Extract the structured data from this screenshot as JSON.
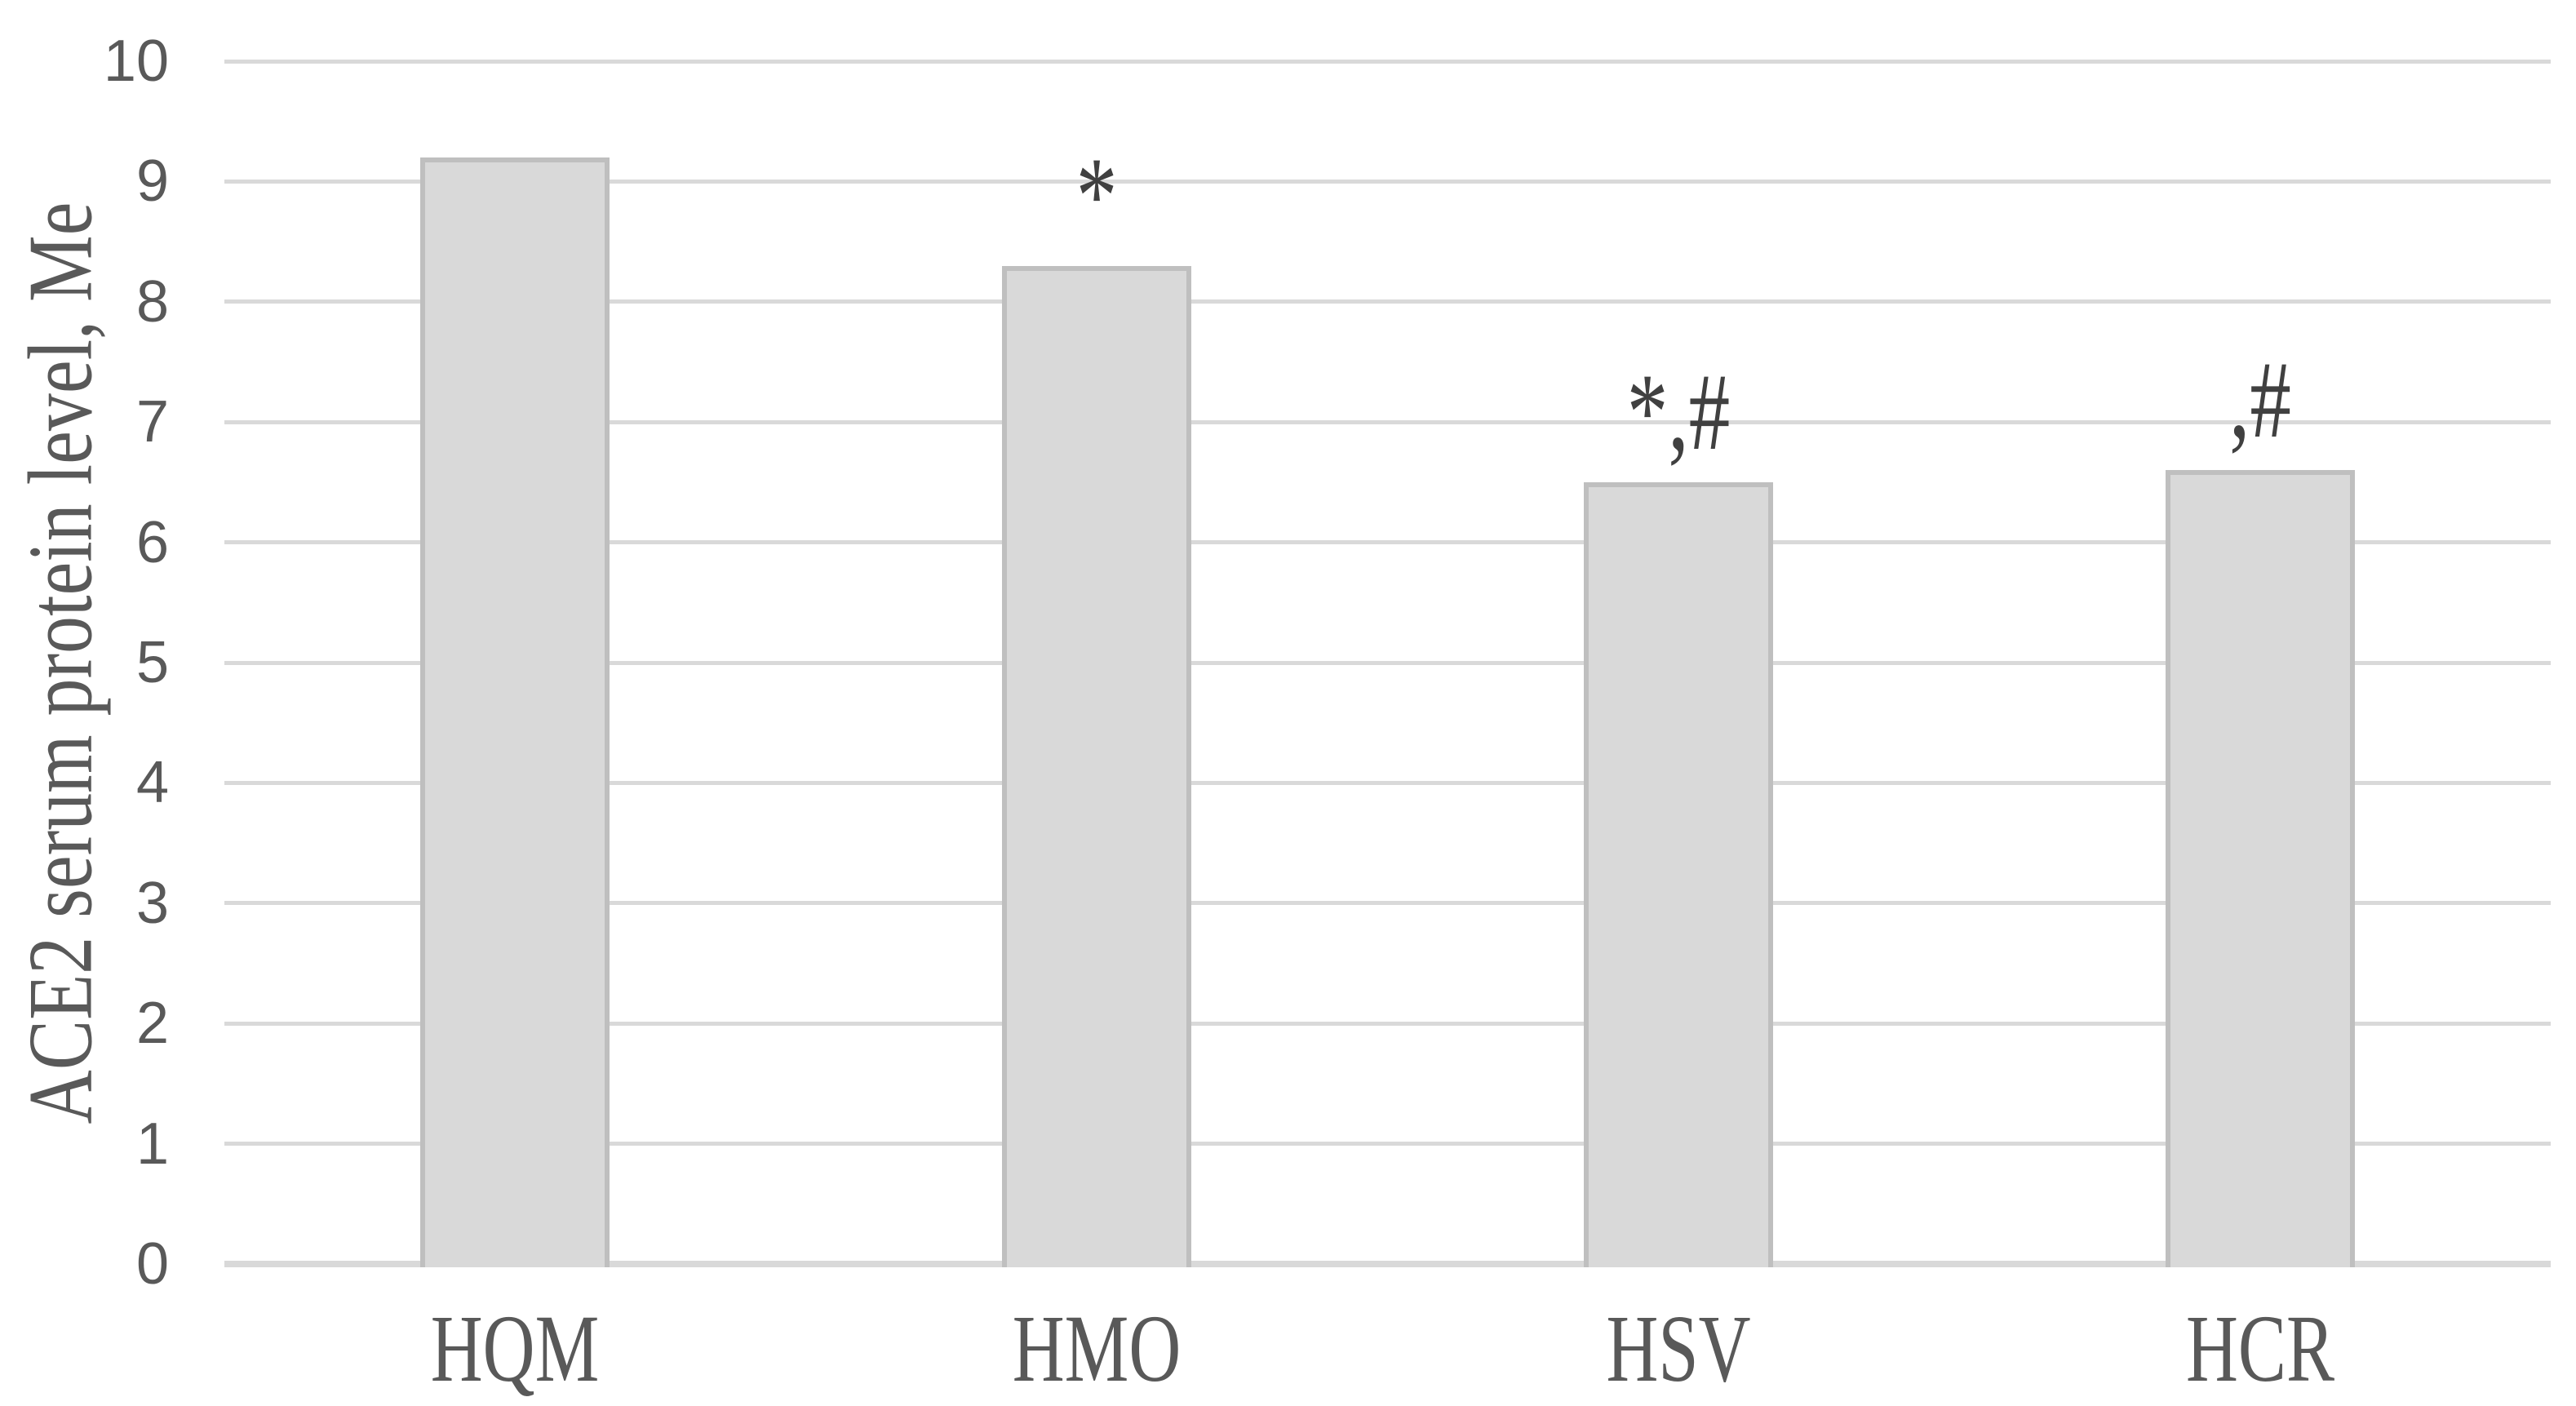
{
  "chart_data": {
    "type": "bar",
    "title": "",
    "xlabel": "",
    "ylabel": "ACE2 serum protein level, Me",
    "categories": [
      "HQM",
      "HMO",
      "HSV",
      "HCR"
    ],
    "values": [
      9.2,
      8.3,
      6.5,
      6.6
    ],
    "annotations": [
      "",
      "*",
      "*,#",
      ",#"
    ],
    "y_ticks": [
      0,
      1,
      2,
      3,
      4,
      5,
      6,
      7,
      8,
      9,
      10
    ],
    "ylim": [
      0,
      10
    ],
    "grid": "horizontal-only",
    "legend_position": "none",
    "colors": {
      "background": "#ffffff",
      "bar_fill": "#d9d9d9",
      "bar_border": "#bfbfbf",
      "gridline": "#d9d9d9",
      "axis_line": "#d9d9d9",
      "tick_text": "#595959",
      "category_text": "#595959",
      "axis_title_text": "#595959",
      "annotation_text": "#404040"
    }
  }
}
